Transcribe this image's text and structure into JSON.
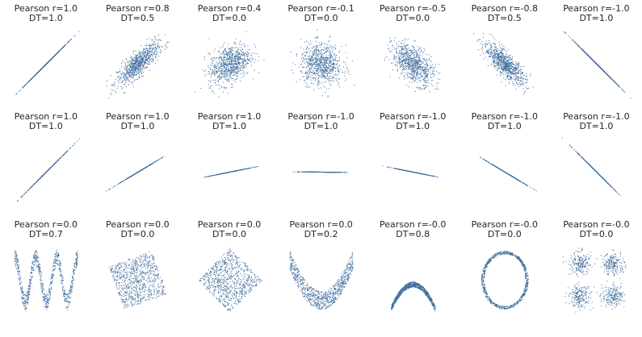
{
  "chart_data": [
    {
      "type": "scatter",
      "title": "Pearson r=1.0",
      "subtitle": "DT=1.0",
      "gen": {
        "kind": "corr",
        "r": 1.0
      },
      "xlim": [
        -3.2,
        3.2
      ],
      "ylim": [
        -3.2,
        3.2
      ]
    },
    {
      "type": "scatter",
      "title": "Pearson r=0.8",
      "subtitle": "DT=0.5",
      "gen": {
        "kind": "corr",
        "r": 0.8
      },
      "xlim": [
        -3.2,
        3.2
      ],
      "ylim": [
        -3.2,
        3.2
      ]
    },
    {
      "type": "scatter",
      "title": "Pearson r=0.4",
      "subtitle": "DT=0.0",
      "gen": {
        "kind": "corr",
        "r": 0.4
      },
      "xlim": [
        -3.2,
        3.2
      ],
      "ylim": [
        -3.2,
        3.2
      ]
    },
    {
      "type": "scatter",
      "title": "Pearson r=-0.1",
      "subtitle": "DT=0.0",
      "gen": {
        "kind": "corr",
        "r": -0.1
      },
      "xlim": [
        -3.2,
        3.2
      ],
      "ylim": [
        -3.2,
        3.2
      ]
    },
    {
      "type": "scatter",
      "title": "Pearson r=-0.5",
      "subtitle": "DT=0.0",
      "gen": {
        "kind": "corr",
        "r": -0.5
      },
      "xlim": [
        -3.2,
        3.2
      ],
      "ylim": [
        -3.2,
        3.2
      ]
    },
    {
      "type": "scatter",
      "title": "Pearson r=-0.8",
      "subtitle": "DT=0.5",
      "gen": {
        "kind": "corr",
        "r": -0.8
      },
      "xlim": [
        -3.2,
        3.2
      ],
      "ylim": [
        -3.2,
        3.2
      ]
    },
    {
      "type": "scatter",
      "title": "Pearson r=-1.0",
      "subtitle": "DT=1.0",
      "gen": {
        "kind": "corr",
        "r": -1.0
      },
      "xlim": [
        -3.2,
        3.2
      ],
      "ylim": [
        -3.2,
        3.2
      ]
    },
    {
      "type": "scatter",
      "title": "Pearson r=1.0",
      "subtitle": "DT=1.0",
      "gen": {
        "kind": "line",
        "slope": 1.0
      },
      "xlim": [
        -3.2,
        3.2
      ],
      "ylim": [
        -3.2,
        3.2
      ]
    },
    {
      "type": "scatter",
      "title": "Pearson r=1.0",
      "subtitle": "DT=1.0",
      "gen": {
        "kind": "line",
        "slope": 0.6
      },
      "xlim": [
        -3.2,
        3.2
      ],
      "ylim": [
        -3.2,
        3.2
      ]
    },
    {
      "type": "scatter",
      "title": "Pearson r=1.0",
      "subtitle": "DT=1.0",
      "gen": {
        "kind": "line",
        "slope": 0.2
      },
      "xlim": [
        -3.2,
        3.2
      ],
      "ylim": [
        -3.2,
        3.2
      ]
    },
    {
      "type": "scatter",
      "title": "Pearson r=-1.0",
      "subtitle": "DT=1.0",
      "gen": {
        "kind": "line",
        "slope": -0.01
      },
      "xlim": [
        -3.2,
        3.2
      ],
      "ylim": [
        -3.2,
        3.2
      ]
    },
    {
      "type": "scatter",
      "title": "Pearson r=-1.0",
      "subtitle": "DT=1.0",
      "gen": {
        "kind": "line",
        "slope": -0.2
      },
      "xlim": [
        -3.2,
        3.2
      ],
      "ylim": [
        -3.2,
        3.2
      ]
    },
    {
      "type": "scatter",
      "title": "Pearson r=-1.0",
      "subtitle": "DT=1.0",
      "gen": {
        "kind": "line",
        "slope": -0.6
      },
      "xlim": [
        -3.2,
        3.2
      ],
      "ylim": [
        -3.2,
        3.2
      ]
    },
    {
      "type": "scatter",
      "title": "Pearson r=-1.0",
      "subtitle": "DT=1.0",
      "gen": {
        "kind": "line",
        "slope": -1.0
      },
      "xlim": [
        -3.2,
        3.2
      ],
      "ylim": [
        -3.2,
        3.2
      ]
    },
    {
      "type": "scatter",
      "title": "Pearson r=0.0",
      "subtitle": "DT=0.7",
      "gen": {
        "kind": "wave"
      },
      "xlim": [
        -1.05,
        1.05
      ],
      "ylim": [
        -1.05,
        1.05
      ]
    },
    {
      "type": "scatter",
      "title": "Pearson r=0.0",
      "subtitle": "DT=0.0",
      "gen": {
        "kind": "rotsquare",
        "angle": 0.35
      },
      "xlim": [
        -1.45,
        1.45
      ],
      "ylim": [
        -1.45,
        1.45
      ]
    },
    {
      "type": "scatter",
      "title": "Pearson r=0.0",
      "subtitle": "DT=0.0",
      "gen": {
        "kind": "rotsquare",
        "angle": 0.785
      },
      "xlim": [
        -1.45,
        1.45
      ],
      "ylim": [
        -1.45,
        1.45
      ]
    },
    {
      "type": "scatter",
      "title": "Pearson r=0.0",
      "subtitle": "DT=0.2",
      "gen": {
        "kind": "parabola"
      },
      "xlim": [
        -1.05,
        1.05
      ],
      "ylim": [
        -0.2,
        1.6
      ]
    },
    {
      "type": "scatter",
      "title": "Pearson r=-0.0",
      "subtitle": "DT=0.8",
      "gen": {
        "kind": "arch"
      },
      "xlim": [
        -1.5,
        1.5
      ],
      "ylim": [
        -1.6,
        1.4
      ]
    },
    {
      "type": "scatter",
      "title": "Pearson r=-0.0",
      "subtitle": "DT=0.0",
      "gen": {
        "kind": "ring"
      },
      "xlim": [
        -1.5,
        1.5
      ],
      "ylim": [
        -1.5,
        1.5
      ]
    },
    {
      "type": "scatter",
      "title": "Pearson r=-0.0",
      "subtitle": "DT=0.0",
      "gen": {
        "kind": "clusters"
      },
      "xlim": [
        -6,
        6
      ],
      "ylim": [
        -6,
        6
      ]
    }
  ],
  "style": {
    "marker_color": "#3b6a9c",
    "background": "#ffffff"
  }
}
